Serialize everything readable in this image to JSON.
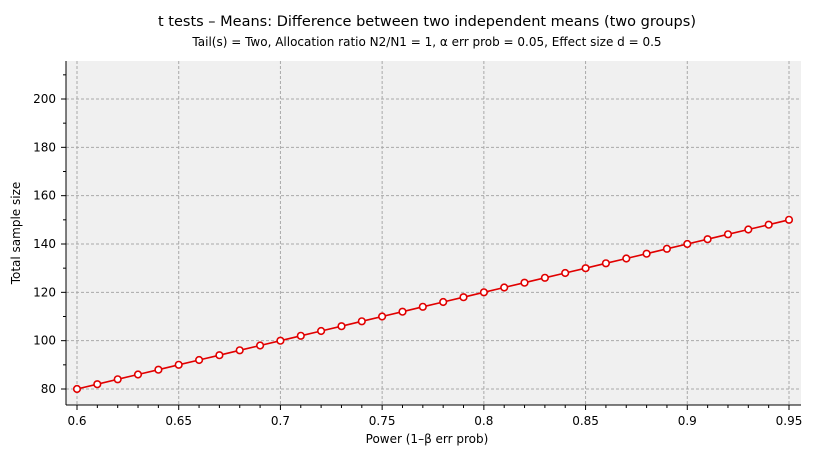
{
  "chart_data": {
    "type": "line",
    "title": "t tests – Means: Difference between two independent means (two groups)",
    "subtitle": "Tail(s) = Two, Allocation ratio N2/N1 = 1, α err prob = 0.05, Effect size d = 0.5",
    "xlabel": "Power (1–β err prob)",
    "ylabel": "Total sample size",
    "xlim": [
      0.6,
      0.95
    ],
    "ylim": [
      76,
      216
    ],
    "xticks": [
      "0.6",
      "0.65",
      "0.7",
      "0.75",
      "0.8",
      "0.85",
      "0.9",
      "0.95"
    ],
    "yticks": [
      "80",
      "100",
      "120",
      "140",
      "160",
      "180",
      "200"
    ],
    "grid": true,
    "series": [
      {
        "color": "#e10000",
        "x": [
          0.6,
          0.61,
          0.62,
          0.63,
          0.64,
          0.65,
          0.66,
          0.67,
          0.68,
          0.69,
          0.7,
          0.71,
          0.72,
          0.73,
          0.74,
          0.75,
          0.76,
          0.77,
          0.78,
          0.79,
          0.8,
          0.81,
          0.82,
          0.83,
          0.84,
          0.85,
          0.86,
          0.87,
          0.88,
          0.89,
          0.9,
          0.91,
          0.92,
          0.93,
          0.94,
          0.95
        ],
        "y": [
          80,
          82,
          84,
          86,
          88,
          90,
          92,
          94,
          96,
          98,
          100,
          102,
          104,
          106,
          108,
          110,
          112,
          114,
          116,
          118,
          120,
          122,
          124,
          126,
          128,
          130,
          132,
          134,
          136,
          138,
          140,
          142,
          144,
          146,
          148,
          150
        ]
      }
    ]
  }
}
